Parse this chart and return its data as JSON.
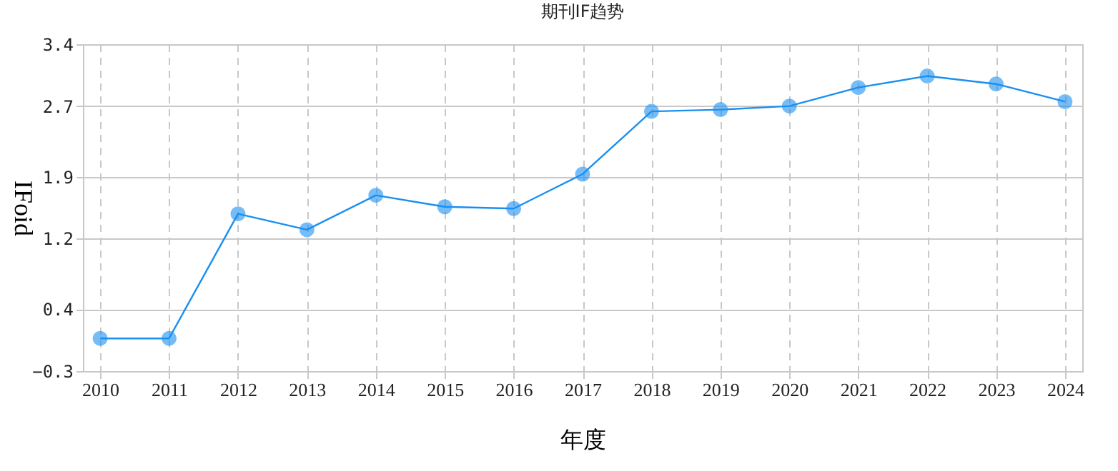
{
  "chart_data": {
    "type": "line",
    "title": "期刊IF趋势",
    "xlabel": "年度",
    "ylabel": "IFoid",
    "categories": [
      "2010",
      "2011",
      "2012",
      "2013",
      "2014",
      "2015",
      "2016",
      "2017",
      "2018",
      "2019",
      "2020",
      "2021",
      "2022",
      "2023",
      "2024"
    ],
    "series": [
      {
        "color": "#1a8ff0",
        "values": [
          0.07,
          0.07,
          1.48,
          1.3,
          1.69,
          1.56,
          1.54,
          1.93,
          2.64,
          2.66,
          2.7,
          2.91,
          3.04,
          2.95,
          2.75
        ]
      }
    ],
    "ylim": [
      -0.3,
      3.4
    ],
    "yticks": [
      -0.3,
      0.4,
      1.2,
      1.9,
      2.7,
      3.4
    ],
    "grid": true,
    "marker": "circle",
    "line_style": "solid"
  }
}
